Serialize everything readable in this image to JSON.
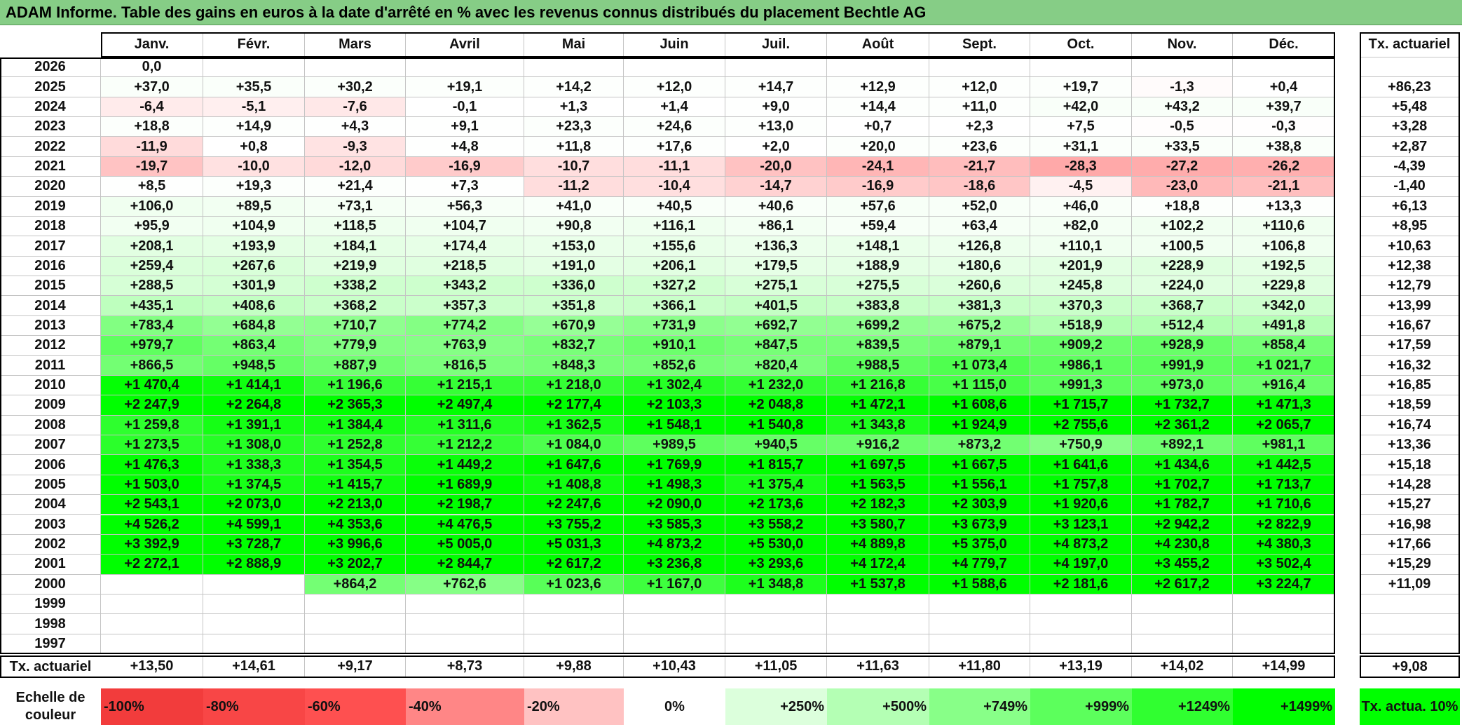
{
  "title": "ADAM Informe. Table des gains en euros à la date d'arrêté en % avec les revenus connus distribués du placement Bechtle AG",
  "header": {
    "months": [
      "Janv.",
      "Févr.",
      "Mars",
      "Avril",
      "Mai",
      "Juin",
      "Juil.",
      "Août",
      "Sept.",
      "Oct.",
      "Nov.",
      "Déc."
    ],
    "tx": "Tx. actuariel"
  },
  "rows": [
    {
      "year": 2026,
      "cells": [
        "0,0",
        null,
        null,
        null,
        null,
        null,
        null,
        null,
        null,
        null,
        null,
        null
      ],
      "tx": null
    },
    {
      "year": 2025,
      "cells": [
        "+37,0",
        "+35,5",
        "+30,2",
        "+19,1",
        "+14,2",
        "+12,0",
        "+14,7",
        "+12,9",
        "+12,0",
        "+19,7",
        "-1,3",
        "+0,4"
      ],
      "tx": "+86,23"
    },
    {
      "year": 2024,
      "cells": [
        "-6,4",
        "-5,1",
        "-7,6",
        "-0,1",
        "+1,3",
        "+1,4",
        "+9,0",
        "+14,4",
        "+11,0",
        "+42,0",
        "+43,2",
        "+39,7"
      ],
      "tx": "+5,48"
    },
    {
      "year": 2023,
      "cells": [
        "+18,8",
        "+14,9",
        "+4,3",
        "+9,1",
        "+23,3",
        "+24,6",
        "+13,0",
        "+0,7",
        "+2,3",
        "+7,5",
        "-0,5",
        "-0,3"
      ],
      "tx": "+3,28"
    },
    {
      "year": 2022,
      "cells": [
        "-11,9",
        "+0,8",
        "-9,3",
        "+4,8",
        "+11,8",
        "+17,6",
        "+2,0",
        "+20,0",
        "+23,6",
        "+31,1",
        "+33,5",
        "+38,8"
      ],
      "tx": "+2,87"
    },
    {
      "year": 2021,
      "cells": [
        "-19,7",
        "-10,0",
        "-12,0",
        "-16,9",
        "-10,7",
        "-11,1",
        "-20,0",
        "-24,1",
        "-21,7",
        "-28,3",
        "-27,2",
        "-26,2"
      ],
      "tx": "-4,39"
    },
    {
      "year": 2020,
      "cells": [
        "+8,5",
        "+19,3",
        "+21,4",
        "+7,3",
        "-11,2",
        "-10,4",
        "-14,7",
        "-16,9",
        "-18,6",
        "-4,5",
        "-23,0",
        "-21,1"
      ],
      "tx": "-1,40"
    },
    {
      "year": 2019,
      "cells": [
        "+106,0",
        "+89,5",
        "+73,1",
        "+56,3",
        "+41,0",
        "+40,5",
        "+40,6",
        "+57,6",
        "+52,0",
        "+46,0",
        "+18,8",
        "+13,3"
      ],
      "tx": "+6,13"
    },
    {
      "year": 2018,
      "cells": [
        "+95,9",
        "+104,9",
        "+118,5",
        "+104,7",
        "+90,8",
        "+116,1",
        "+86,1",
        "+59,4",
        "+63,4",
        "+82,0",
        "+102,2",
        "+110,6"
      ],
      "tx": "+8,95"
    },
    {
      "year": 2017,
      "cells": [
        "+208,1",
        "+193,9",
        "+184,1",
        "+174,4",
        "+153,0",
        "+155,6",
        "+136,3",
        "+148,1",
        "+126,8",
        "+110,1",
        "+100,5",
        "+106,8"
      ],
      "tx": "+10,63"
    },
    {
      "year": 2016,
      "cells": [
        "+259,4",
        "+267,6",
        "+219,9",
        "+218,5",
        "+191,0",
        "+206,1",
        "+179,5",
        "+188,9",
        "+180,6",
        "+201,9",
        "+228,9",
        "+192,5"
      ],
      "tx": "+12,38"
    },
    {
      "year": 2015,
      "cells": [
        "+288,5",
        "+301,9",
        "+338,2",
        "+343,2",
        "+336,0",
        "+327,2",
        "+275,1",
        "+275,5",
        "+260,6",
        "+245,8",
        "+224,0",
        "+229,8"
      ],
      "tx": "+12,79"
    },
    {
      "year": 2014,
      "cells": [
        "+435,1",
        "+408,6",
        "+368,2",
        "+357,3",
        "+351,8",
        "+366,1",
        "+401,5",
        "+383,8",
        "+381,3",
        "+370,3",
        "+368,7",
        "+342,0"
      ],
      "tx": "+13,99"
    },
    {
      "year": 2013,
      "cells": [
        "+783,4",
        "+684,8",
        "+710,7",
        "+774,2",
        "+670,9",
        "+731,9",
        "+692,7",
        "+699,2",
        "+675,2",
        "+518,9",
        "+512,4",
        "+491,8"
      ],
      "tx": "+16,67"
    },
    {
      "year": 2012,
      "cells": [
        "+979,7",
        "+863,4",
        "+779,9",
        "+763,9",
        "+832,7",
        "+910,1",
        "+847,5",
        "+839,5",
        "+879,1",
        "+909,2",
        "+928,9",
        "+858,4"
      ],
      "tx": "+17,59"
    },
    {
      "year": 2011,
      "cells": [
        "+866,5",
        "+948,5",
        "+887,9",
        "+816,5",
        "+848,3",
        "+852,6",
        "+820,4",
        "+988,5",
        "+1 073,4",
        "+986,1",
        "+991,9",
        "+1 021,7"
      ],
      "tx": "+16,32"
    },
    {
      "year": 2010,
      "cells": [
        "+1 470,4",
        "+1 414,1",
        "+1 196,6",
        "+1 215,1",
        "+1 218,0",
        "+1 302,4",
        "+1 232,0",
        "+1 216,8",
        "+1 115,0",
        "+991,3",
        "+973,0",
        "+916,4"
      ],
      "tx": "+16,85"
    },
    {
      "year": 2009,
      "cells": [
        "+2 247,9",
        "+2 264,8",
        "+2 365,3",
        "+2 497,4",
        "+2 177,4",
        "+2 103,3",
        "+2 048,8",
        "+1 472,1",
        "+1 608,6",
        "+1 715,7",
        "+1 732,7",
        "+1 471,3"
      ],
      "tx": "+18,59"
    },
    {
      "year": 2008,
      "cells": [
        "+1 259,8",
        "+1 391,1",
        "+1 384,4",
        "+1 311,6",
        "+1 362,5",
        "+1 548,1",
        "+1 540,8",
        "+1 343,8",
        "+1 924,9",
        "+2 755,6",
        "+2 361,2",
        "+2 065,7"
      ],
      "tx": "+16,74"
    },
    {
      "year": 2007,
      "cells": [
        "+1 273,5",
        "+1 308,0",
        "+1 252,8",
        "+1 212,2",
        "+1 084,0",
        "+989,5",
        "+940,5",
        "+916,2",
        "+873,2",
        "+750,9",
        "+892,1",
        "+981,1"
      ],
      "tx": "+13,36"
    },
    {
      "year": 2006,
      "cells": [
        "+1 476,3",
        "+1 338,3",
        "+1 354,5",
        "+1 449,2",
        "+1 647,6",
        "+1 769,9",
        "+1 815,7",
        "+1 697,5",
        "+1 667,5",
        "+1 641,6",
        "+1 434,6",
        "+1 442,5"
      ],
      "tx": "+15,18"
    },
    {
      "year": 2005,
      "cells": [
        "+1 503,0",
        "+1 374,5",
        "+1 415,7",
        "+1 689,9",
        "+1 408,8",
        "+1 498,3",
        "+1 375,4",
        "+1 563,5",
        "+1 556,1",
        "+1 757,8",
        "+1 702,7",
        "+1 713,7"
      ],
      "tx": "+14,28"
    },
    {
      "year": 2004,
      "cells": [
        "+2 543,1",
        "+2 073,0",
        "+2 213,0",
        "+2 198,7",
        "+2 247,6",
        "+2 090,0",
        "+2 173,6",
        "+2 182,3",
        "+2 303,9",
        "+1 920,6",
        "+1 782,7",
        "+1 710,6"
      ],
      "tx": "+15,27"
    },
    {
      "year": 2003,
      "cells": [
        "+4 526,2",
        "+4 599,1",
        "+4 353,6",
        "+4 476,5",
        "+3 755,2",
        "+3 585,3",
        "+3 558,2",
        "+3 580,7",
        "+3 673,9",
        "+3 123,1",
        "+2 942,2",
        "+2 822,9"
      ],
      "tx": "+16,98"
    },
    {
      "year": 2002,
      "cells": [
        "+3 392,9",
        "+3 728,7",
        "+3 996,6",
        "+5 005,0",
        "+5 031,3",
        "+4 873,2",
        "+5 530,0",
        "+4 889,8",
        "+5 375,0",
        "+4 873,2",
        "+4 230,8",
        "+4 380,3"
      ],
      "tx": "+17,66"
    },
    {
      "year": 2001,
      "cells": [
        "+2 272,1",
        "+2 888,9",
        "+3 202,7",
        "+2 844,7",
        "+2 617,2",
        "+3 236,8",
        "+3 293,6",
        "+4 172,4",
        "+4 779,7",
        "+4 197,0",
        "+3 455,2",
        "+3 502,4"
      ],
      "tx": "+15,29"
    },
    {
      "year": 2000,
      "cells": [
        null,
        null,
        "+864,2",
        "+762,6",
        "+1 023,6",
        "+1 167,0",
        "+1 348,8",
        "+1 537,8",
        "+1 588,6",
        "+2 181,6",
        "+2 617,2",
        "+3 224,7"
      ],
      "tx": "+11,09"
    },
    {
      "year": 1999,
      "cells": [
        null,
        null,
        null,
        null,
        null,
        null,
        null,
        null,
        null,
        null,
        null,
        null
      ],
      "tx": null
    },
    {
      "year": 1998,
      "cells": [
        null,
        null,
        null,
        null,
        null,
        null,
        null,
        null,
        null,
        null,
        null,
        null
      ],
      "tx": null
    },
    {
      "year": 1997,
      "cells": [
        null,
        null,
        null,
        null,
        null,
        null,
        null,
        null,
        null,
        null,
        null,
        null
      ],
      "tx": null
    }
  ],
  "footer": {
    "label": "Tx. actuariel",
    "cells": [
      "+13,50",
      "+14,61",
      "+9,17",
      "+8,73",
      "+9,88",
      "+10,43",
      "+11,05",
      "+11,63",
      "+11,80",
      "+13,19",
      "+14,02",
      "+14,99"
    ],
    "tx": "+9,08"
  },
  "scale": {
    "label": "Echelle de couleur",
    "items": [
      {
        "label": "-100%",
        "color": "#f23c3c"
      },
      {
        "label": "-80%",
        "color": "#f84646"
      },
      {
        "label": "-60%",
        "color": "#fe5050"
      },
      {
        "label": "-40%",
        "color": "#ff8686"
      },
      {
        "label": "-20%",
        "color": "#ffc2c2"
      },
      {
        "label": "0%",
        "color": "#ffffff"
      },
      {
        "label": "+250%",
        "color": "#dcffdc"
      },
      {
        "label": "+500%",
        "color": "#b4ffb4"
      },
      {
        "label": "+749%",
        "color": "#88ff88"
      },
      {
        "label": "+999%",
        "color": "#5cff5c"
      },
      {
        "label": "+1249%",
        "color": "#30ff30"
      },
      {
        "label": "+1499%",
        "color": "#00ff00"
      }
    ],
    "tx": {
      "label": "Tx. actua. 10%",
      "color": "#00ff00"
    }
  }
}
